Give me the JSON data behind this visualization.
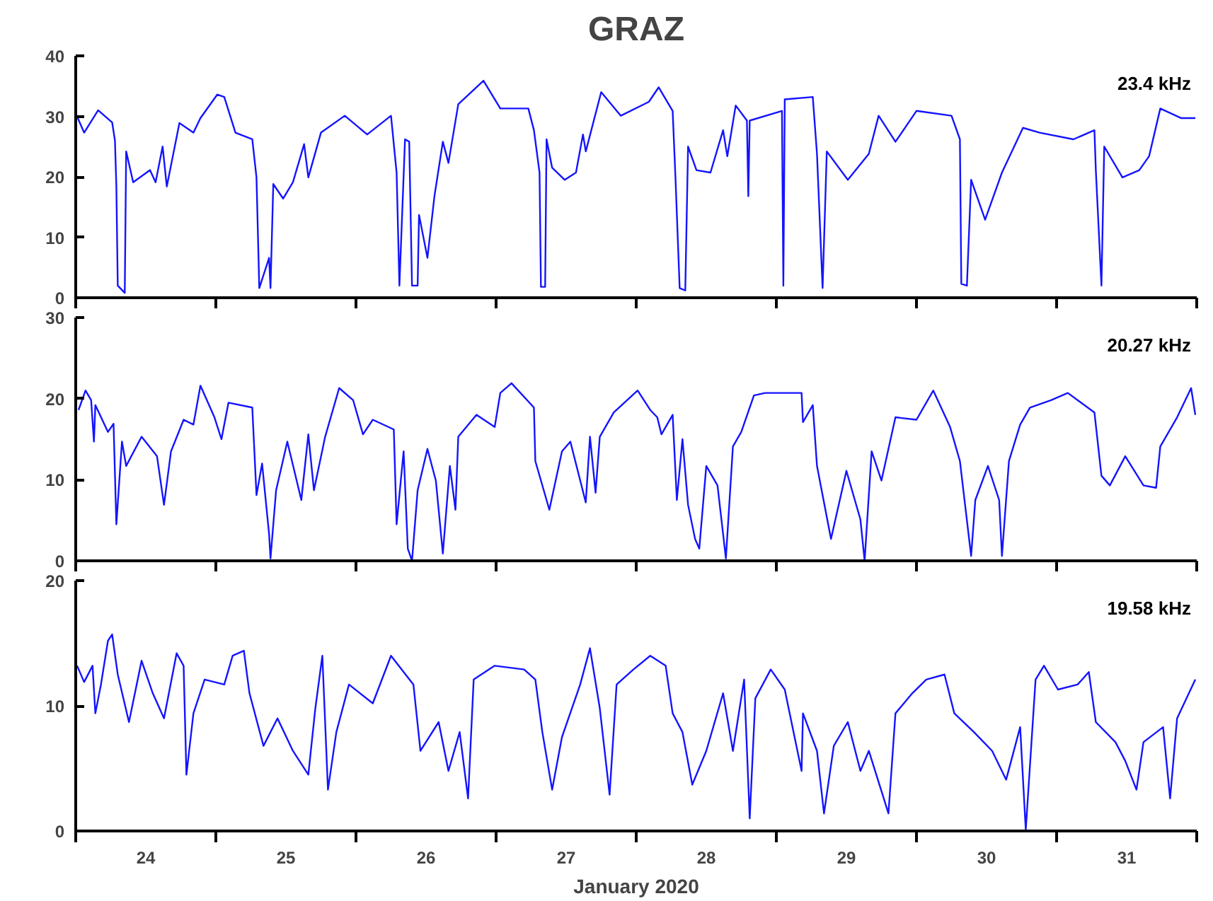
{
  "chart_data": [
    {
      "type": "line",
      "title": "GRAZ",
      "annotations": [
        "23.4 kHz"
      ],
      "xlim": [
        24,
        32
      ],
      "ylim": [
        0,
        40
      ],
      "yticks": [
        0,
        10,
        20,
        30,
        40
      ],
      "grid": false,
      "tick_labels": "y",
      "xticks": [
        {
          "value": 24,
          "label": null
        },
        {
          "value": 25,
          "label": null
        },
        {
          "value": 26,
          "label": null
        },
        {
          "value": 27,
          "label": null
        },
        {
          "value": 28,
          "label": null
        },
        {
          "value": 29,
          "label": null
        },
        {
          "value": 30,
          "label": null
        },
        {
          "value": 31,
          "label": null
        },
        {
          "value": 32,
          "label": null
        }
      ],
      "series": [
        {
          "color": "#1414ff",
          "x": [
            24.0,
            24.06,
            24.16,
            24.26,
            24.28,
            24.29,
            24.3,
            24.35,
            24.36,
            24.41,
            24.53,
            24.57,
            24.62,
            24.65,
            24.74,
            24.84,
            24.89,
            25.01,
            25.06,
            25.14,
            25.26,
            25.29,
            25.31,
            25.38,
            25.39,
            25.41,
            25.48,
            25.55,
            25.63,
            25.66,
            25.75,
            25.92,
            26.08,
            26.25,
            26.29,
            26.31,
            26.35,
            26.38,
            26.4,
            26.44,
            26.45,
            26.51,
            26.56,
            26.62,
            26.66,
            26.73,
            26.91,
            27.03,
            27.23,
            27.27,
            27.31,
            27.32,
            27.35,
            27.36,
            27.4,
            27.49,
            27.57,
            27.62,
            27.64,
            27.75,
            27.89,
            28.09,
            28.16,
            28.26,
            28.28,
            28.31,
            28.35,
            28.37,
            28.43,
            28.53,
            28.62,
            28.65,
            28.71,
            28.79,
            28.8,
            28.81,
            29.04,
            29.05,
            29.06,
            29.26,
            29.29,
            29.33,
            29.36,
            29.51,
            29.66,
            29.73,
            29.85,
            30.0,
            30.25,
            30.31,
            30.32,
            30.36,
            30.39,
            30.49,
            30.61,
            30.76,
            30.88,
            31.12,
            31.27,
            31.28,
            31.32,
            31.34,
            31.47,
            31.59,
            31.66,
            31.74,
            31.89,
            31.99
          ],
          "values": [
            30.5,
            27.3,
            31,
            29,
            26,
            18.4,
            2,
            0.8,
            24.2,
            19.1,
            21.1,
            19.1,
            25,
            18.4,
            28.9,
            27.3,
            29.7,
            33.6,
            33.2,
            27.3,
            26.2,
            19.9,
            1.6,
            6.6,
            1.6,
            18.8,
            16.4,
            19.1,
            25.4,
            19.9,
            27.3,
            30.1,
            27,
            30.1,
            20.7,
            2,
            26.2,
            25.8,
            2,
            2,
            13.7,
            6.6,
            16.8,
            25.8,
            22.3,
            32,
            35.9,
            31.3,
            31.3,
            27.7,
            20.7,
            1.8,
            1.8,
            26.2,
            21.5,
            19.5,
            20.7,
            27,
            24.2,
            34,
            30.1,
            32.4,
            34.8,
            30.9,
            19.9,
            1.6,
            1.2,
            25,
            21.1,
            20.7,
            27.7,
            23.4,
            31.8,
            29.3,
            16.8,
            29.3,
            30.9,
            2,
            32.8,
            33.2,
            23.8,
            1.6,
            24.2,
            19.5,
            23.8,
            30.1,
            25.8,
            30.9,
            30.1,
            26.2,
            2.3,
            2,
            19.5,
            12.9,
            20.7,
            28.1,
            27.3,
            26.2,
            27.7,
            21.1,
            2,
            25,
            19.9,
            21.1,
            23.4,
            31.3,
            29.7,
            29.7
          ]
        }
      ]
    },
    {
      "type": "line",
      "annotations": [
        "20.27 kHz"
      ],
      "xlim": [
        24,
        32
      ],
      "ylim": [
        0,
        30
      ],
      "yticks": [
        0,
        10,
        20,
        30
      ],
      "grid": false,
      "tick_labels": "y",
      "xticks": [
        {
          "value": 24,
          "label": null
        },
        {
          "value": 25,
          "label": null
        },
        {
          "value": 26,
          "label": null
        },
        {
          "value": 27,
          "label": null
        },
        {
          "value": 28,
          "label": null
        },
        {
          "value": 29,
          "label": null
        },
        {
          "value": 30,
          "label": null
        },
        {
          "value": 31,
          "label": null
        },
        {
          "value": 32,
          "label": null
        }
      ],
      "series": [
        {
          "color": "#1414ff",
          "x": [
            24.02,
            24.07,
            24.11,
            24.13,
            24.14,
            24.23,
            24.27,
            24.29,
            24.33,
            24.36,
            24.47,
            24.58,
            24.63,
            24.68,
            24.77,
            24.84,
            24.89,
            24.99,
            25.04,
            25.09,
            25.26,
            25.29,
            25.33,
            25.38,
            25.39,
            25.43,
            25.51,
            25.61,
            25.66,
            25.7,
            25.78,
            25.88,
            25.98,
            26.05,
            26.12,
            26.27,
            26.29,
            26.34,
            26.37,
            26.4,
            26.44,
            26.51,
            26.57,
            26.62,
            26.67,
            26.71,
            26.73,
            26.86,
            26.99,
            27.03,
            27.11,
            27.27,
            27.28,
            27.38,
            27.47,
            27.53,
            27.64,
            27.67,
            27.71,
            27.74,
            27.84,
            28.01,
            28.1,
            28.15,
            28.18,
            28.26,
            28.29,
            28.33,
            28.37,
            28.42,
            28.45,
            28.5,
            28.58,
            28.64,
            28.69,
            28.75,
            28.84,
            28.92,
            29.18,
            29.19,
            29.26,
            29.29,
            29.39,
            29.5,
            29.6,
            29.63,
            29.68,
            29.75,
            29.85,
            30.0,
            30.12,
            30.24,
            30.31,
            30.39,
            30.42,
            30.51,
            30.59,
            30.61,
            30.66,
            30.74,
            30.81,
            30.96,
            31.08,
            31.27,
            31.32,
            31.38,
            31.49,
            31.62,
            31.71,
            31.74,
            31.86,
            31.96,
            31.99
          ],
          "values": [
            18.6,
            21,
            19.8,
            14.7,
            19.2,
            15.9,
            16.9,
            4.5,
            14.7,
            11.7,
            15.3,
            12.9,
            6.9,
            13.5,
            17.4,
            16.8,
            21.6,
            17.7,
            15,
            19.5,
            18.9,
            8.1,
            12,
            3.3,
            0.3,
            8.7,
            14.7,
            7.5,
            15.6,
            8.7,
            15.3,
            21.3,
            19.8,
            15.6,
            17.4,
            16.2,
            4.5,
            13.5,
            1.5,
            0,
            8.7,
            13.8,
            9.9,
            0.9,
            11.7,
            6.3,
            15.3,
            18,
            16.5,
            20.7,
            21.9,
            18.9,
            12.3,
            6.3,
            13.5,
            14.7,
            7.2,
            15.3,
            8.4,
            15.3,
            18.3,
            21,
            18.6,
            17.7,
            15.6,
            18,
            7.5,
            15,
            6.9,
            2.7,
            1.5,
            11.7,
            9.3,
            0.3,
            14.1,
            15.9,
            20.4,
            20.7,
            20.7,
            17.1,
            19.2,
            11.7,
            2.7,
            11.1,
            5.1,
            0,
            13.5,
            9.9,
            17.7,
            17.4,
            21,
            16.5,
            12.3,
            0.6,
            7.5,
            11.7,
            7.5,
            0.6,
            12.3,
            16.8,
            18.9,
            19.8,
            20.7,
            18.3,
            10.5,
            9.3,
            12.9,
            9.3,
            9,
            14.1,
            17.7,
            21.3,
            18
          ]
        }
      ]
    },
    {
      "type": "line",
      "xlabel": "January 2020",
      "annotations": [
        "19.58 kHz"
      ],
      "xlim": [
        24,
        32
      ],
      "ylim": [
        0,
        20
      ],
      "yticks": [
        0,
        10,
        20
      ],
      "grid": false,
      "xticks": [
        {
          "value": 24,
          "label": null
        },
        {
          "value": 24.5,
          "label": "24"
        },
        {
          "value": 25,
          "label": null
        },
        {
          "value": 25.5,
          "label": "25"
        },
        {
          "value": 26,
          "label": null
        },
        {
          "value": 26.5,
          "label": "26"
        },
        {
          "value": 27,
          "label": null
        },
        {
          "value": 27.5,
          "label": "27"
        },
        {
          "value": 28,
          "label": null
        },
        {
          "value": 28.5,
          "label": "28"
        },
        {
          "value": 29,
          "label": null
        },
        {
          "value": 29.5,
          "label": "29"
        },
        {
          "value": 30,
          "label": null
        },
        {
          "value": 30.5,
          "label": "30"
        },
        {
          "value": 31,
          "label": null
        },
        {
          "value": 31.5,
          "label": "31"
        },
        {
          "value": 32,
          "label": null
        }
      ],
      "series": [
        {
          "color": "#1414ff",
          "x": [
            24.01,
            24.06,
            24.12,
            24.14,
            24.18,
            24.23,
            24.26,
            24.3,
            24.38,
            24.47,
            24.55,
            24.63,
            24.72,
            24.77,
            24.79,
            24.84,
            24.92,
            25.06,
            25.12,
            25.2,
            25.24,
            25.34,
            25.44,
            25.55,
            25.66,
            25.71,
            25.76,
            25.8,
            25.86,
            25.95,
            26.12,
            26.25,
            26.41,
            26.46,
            26.59,
            26.66,
            26.74,
            26.8,
            26.84,
            26.99,
            27.2,
            27.28,
            27.33,
            27.4,
            27.47,
            27.6,
            27.67,
            27.74,
            27.81,
            27.86,
            27.98,
            28.1,
            28.21,
            28.26,
            28.33,
            28.4,
            28.5,
            28.62,
            28.69,
            28.77,
            28.81,
            28.85,
            28.96,
            29.06,
            29.18,
            29.19,
            29.29,
            29.34,
            29.41,
            29.51,
            29.6,
            29.66,
            29.8,
            29.85,
            29.97,
            30.07,
            30.2,
            30.27,
            30.41,
            30.54,
            30.64,
            30.74,
            30.78,
            30.85,
            30.91,
            31.01,
            31.15,
            31.23,
            31.28,
            31.42,
            31.49,
            31.57,
            31.62,
            31.76,
            31.81,
            31.86,
            31.99
          ],
          "values": [
            13.2,
            11.9,
            13.2,
            9.4,
            11.7,
            15.2,
            15.7,
            12.5,
            8.7,
            13.6,
            11,
            9,
            14.2,
            13.2,
            4.5,
            9.4,
            12.1,
            11.7,
            14,
            14.4,
            11,
            6.8,
            9,
            6.4,
            4.5,
            9.8,
            14,
            3.3,
            7.9,
            11.7,
            10.2,
            14,
            11.7,
            6.4,
            8.7,
            4.8,
            7.9,
            2.6,
            12.1,
            13.2,
            12.9,
            12.1,
            7.9,
            3.3,
            7.5,
            11.7,
            14.6,
            9.8,
            2.9,
            11.7,
            12.9,
            14,
            13.2,
            9.4,
            7.9,
            3.7,
            6.4,
            11,
            6.4,
            12.1,
            1,
            10.6,
            12.9,
            11.3,
            4.8,
            9.4,
            6.4,
            1.4,
            6.8,
            8.7,
            4.8,
            6.4,
            1.4,
            9.4,
            11,
            12.1,
            12.5,
            9.4,
            7.9,
            6.4,
            4.1,
            8.3,
            0.1,
            12.1,
            13.2,
            11.3,
            11.7,
            12.7,
            8.7,
            7.1,
            5.6,
            3.3,
            7.1,
            8.3,
            2.6,
            9,
            12.1
          ]
        }
      ]
    }
  ]
}
